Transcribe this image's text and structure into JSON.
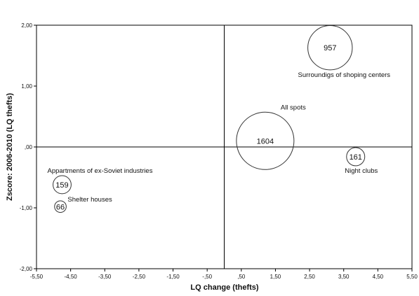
{
  "chart_data": {
    "type": "scatter",
    "xlabel": "LQ change (thefts)",
    "ylabel": "Zscore: 2006-2010 (LQ thefts)",
    "xlim": [
      -5.5,
      5.5
    ],
    "ylim": [
      -2.0,
      2.0
    ],
    "x_ticks": [
      "-5,50",
      "-4,50",
      "-3,50",
      "-2,50",
      "-1,50",
      "-,50",
      ",50",
      "1,50",
      "2,50",
      "3,50",
      "4,50",
      "5,50"
    ],
    "x_tick_values": [
      -5.5,
      -4.5,
      -3.5,
      -2.5,
      -1.5,
      -0.5,
      0.5,
      1.5,
      2.5,
      3.5,
      4.5,
      5.5
    ],
    "y_ticks": [
      "2,00",
      "1,00",
      ",00",
      "-1,00",
      "-2,00"
    ],
    "y_tick_values": [
      2.0,
      1.0,
      0.0,
      -1.0,
      -2.0
    ],
    "reference_lines": {
      "x": 0.0,
      "y": 0.0
    },
    "grid": false,
    "bubble_color": "#333333",
    "points": [
      {
        "label": "Surroundigs of shoping centers",
        "value": "957",
        "x": 3.1,
        "y": 1.63
      },
      {
        "label": "All spots",
        "value": "1604",
        "x": 1.2,
        "y": 0.1
      },
      {
        "label": "Night clubs",
        "value": "161",
        "x": 3.85,
        "y": -0.16
      },
      {
        "label": "Appartments of ex-Soviet industries",
        "value": "159",
        "x": -4.75,
        "y": -0.62
      },
      {
        "label": "Shelter houses",
        "value": "66",
        "x": -4.8,
        "y": -0.98
      }
    ]
  }
}
